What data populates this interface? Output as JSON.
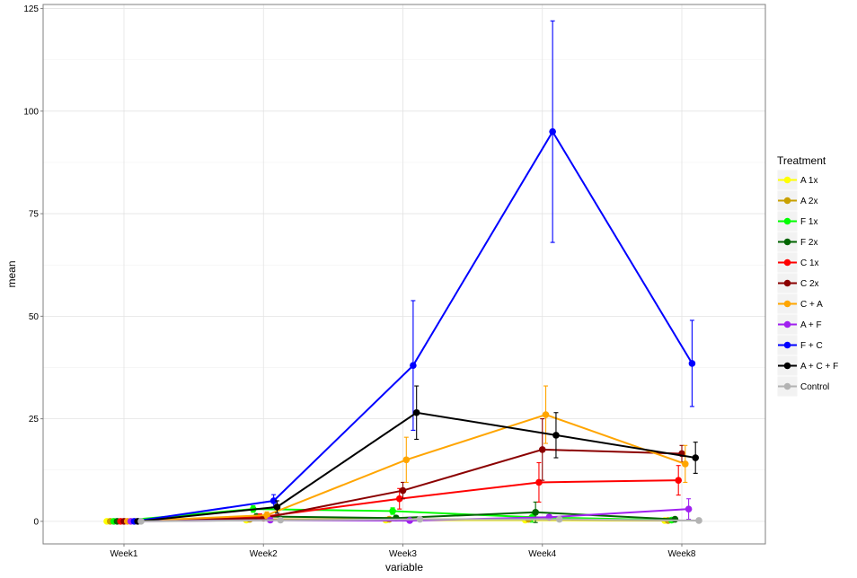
{
  "chart_data": {
    "type": "line",
    "title": "",
    "xlabel": "variable",
    "ylabel": "mean",
    "categories": [
      "Week1",
      "Week2",
      "Week3",
      "Week4",
      "Week8"
    ],
    "ylim": [
      -5.5,
      126
    ],
    "yticks": [
      0,
      25,
      50,
      75,
      100,
      125
    ],
    "grid": true,
    "legend": {
      "title": "Treatment",
      "position": "right"
    },
    "error_bars": true,
    "series": [
      {
        "name": "A 1x",
        "color": "#ffff00",
        "values": [
          0,
          0.3,
          0.3,
          0.3,
          0.2
        ],
        "errors": [
          0,
          0.4,
          0.5,
          0.5,
          0.4
        ]
      },
      {
        "name": "A 2x",
        "color": "#c8a000",
        "values": [
          0,
          0.5,
          0.5,
          0.5,
          0.2
        ],
        "errors": [
          0,
          0.5,
          0.5,
          0.6,
          0.4
        ]
      },
      {
        "name": "F 1x",
        "color": "#00ff00",
        "values": [
          0,
          3.0,
          2.5,
          1.0,
          0.3
        ],
        "errors": [
          0,
          0.8,
          0.8,
          1.2,
          0.4
        ]
      },
      {
        "name": "F 2x",
        "color": "#006400",
        "values": [
          0,
          1.2,
          0.8,
          2.2,
          0.5
        ],
        "errors": [
          0,
          0.6,
          0.6,
          2.5,
          0.4
        ]
      },
      {
        "name": "C 1x",
        "color": "#ff0000",
        "values": [
          0,
          1.0,
          5.5,
          9.5,
          10.0
        ],
        "errors": [
          0,
          0.8,
          2.5,
          4.8,
          3.6
        ]
      },
      {
        "name": "C 2x",
        "color": "#8b0000",
        "values": [
          0,
          0.8,
          7.5,
          17.5,
          16.5
        ],
        "errors": [
          0,
          0.6,
          2.0,
          7.5,
          2.0
        ]
      },
      {
        "name": "C + A",
        "color": "#ffa500",
        "values": [
          0,
          1.5,
          15.0,
          26.0,
          14.0
        ],
        "errors": [
          0,
          0.8,
          5.5,
          7.0,
          4.5
        ]
      },
      {
        "name": "A + F",
        "color": "#a020f0",
        "values": [
          0,
          0.3,
          0.2,
          1.0,
          3.0
        ],
        "errors": [
          0,
          0.3,
          0.4,
          0.6,
          2.5
        ]
      },
      {
        "name": "F + C",
        "color": "#0000ff",
        "values": [
          0,
          5.0,
          38.0,
          95.0,
          38.5
        ],
        "errors": [
          0,
          1.5,
          15.8,
          27.0,
          10.5
        ]
      },
      {
        "name": "A + C + F",
        "color": "#000000",
        "values": [
          0,
          3.5,
          26.5,
          21.0,
          15.5
        ],
        "errors": [
          0,
          1.5,
          6.5,
          5.5,
          3.8
        ]
      },
      {
        "name": "Control",
        "color": "#b3b3b3",
        "values": [
          0,
          0.3,
          0.5,
          0.5,
          0.2
        ],
        "errors": [
          0,
          0.3,
          0.3,
          0.3,
          0.3
        ]
      }
    ]
  }
}
